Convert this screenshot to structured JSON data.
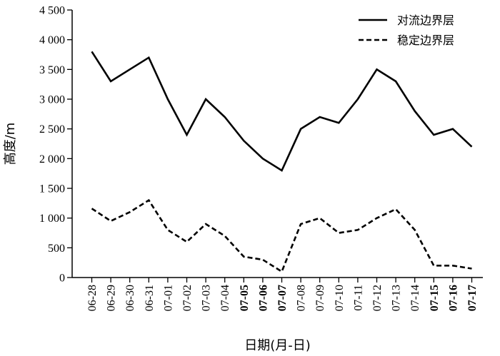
{
  "chart_data": {
    "type": "line",
    "xlabel": "日期(月-日)",
    "ylabel": "高度/m",
    "ylim": [
      0,
      4500
    ],
    "yticks": [
      0,
      500,
      1000,
      1500,
      2000,
      2500,
      3000,
      3500,
      4000,
      4500
    ],
    "ytick_labels": [
      "0",
      "500",
      "1 000",
      "1 500",
      "2 000",
      "2 500",
      "3 000",
      "3 500",
      "4 000",
      "4 500"
    ],
    "categories": [
      "06-28",
      "06-29",
      "06-30",
      "06-31",
      "07-01",
      "07-02",
      "07-03",
      "07-04",
      "07-05",
      "07-06",
      "07-07",
      "07-08",
      "07-09",
      "07-10",
      "07-11",
      "07-12",
      "07-13",
      "07-14",
      "07-15",
      "07-16",
      "07-17"
    ],
    "bold_categories": [
      "07-05",
      "07-06",
      "07-07",
      "07-15",
      "07-16",
      "07-17"
    ],
    "legend_position": "top-right",
    "grid": false,
    "series": [
      {
        "name": "对流边界层",
        "style": "solid",
        "color": "#000000",
        "values": [
          3800,
          3300,
          3500,
          3700,
          3000,
          2400,
          3000,
          2700,
          2300,
          2000,
          1800,
          2500,
          2700,
          2600,
          3000,
          3500,
          3300,
          2800,
          2400,
          2500,
          2200
        ]
      },
      {
        "name": "稳定边界层",
        "style": "dashed",
        "color": "#000000",
        "values": [
          1160,
          950,
          1100,
          1300,
          800,
          600,
          900,
          700,
          350,
          300,
          100,
          900,
          1000,
          750,
          800,
          1000,
          1150,
          800,
          200,
          200,
          150
        ]
      }
    ]
  }
}
